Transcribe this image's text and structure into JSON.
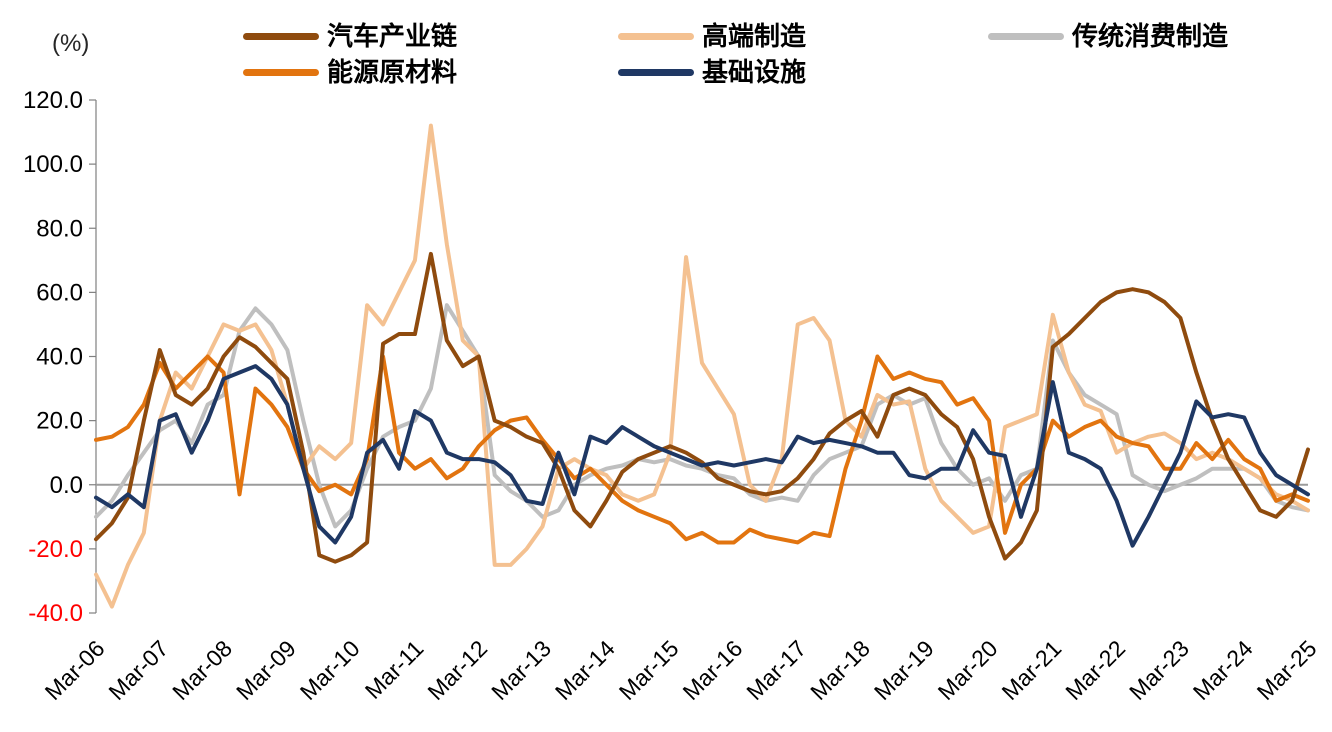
{
  "chart_data": {
    "type": "line",
    "title": "",
    "unit_label": "(%)",
    "x": [
      "Mar-06",
      "Jun-06",
      "Sep-06",
      "Dec-06",
      "Mar-07",
      "Jun-07",
      "Sep-07",
      "Dec-07",
      "Mar-08",
      "Jun-08",
      "Sep-08",
      "Dec-08",
      "Mar-09",
      "Jun-09",
      "Sep-09",
      "Dec-09",
      "Mar-10",
      "Jun-10",
      "Sep-10",
      "Dec-10",
      "Mar-11",
      "Jun-11",
      "Sep-11",
      "Dec-11",
      "Mar-12",
      "Jun-12",
      "Sep-12",
      "Dec-12",
      "Mar-13",
      "Jun-13",
      "Sep-13",
      "Dec-13",
      "Mar-14",
      "Jun-14",
      "Sep-14",
      "Dec-14",
      "Mar-15",
      "Jun-15",
      "Sep-15",
      "Dec-15",
      "Mar-16",
      "Jun-16",
      "Sep-16",
      "Dec-16",
      "Mar-17",
      "Jun-17",
      "Sep-17",
      "Dec-17",
      "Mar-18",
      "Jun-18",
      "Sep-18",
      "Dec-18",
      "Mar-19",
      "Jun-19",
      "Sep-19",
      "Dec-19",
      "Mar-20",
      "Jun-20",
      "Sep-20",
      "Dec-20",
      "Mar-21",
      "Jun-21",
      "Sep-21",
      "Dec-21",
      "Mar-22",
      "Jun-22",
      "Sep-22",
      "Dec-22",
      "Mar-23",
      "Jun-23",
      "Sep-23",
      "Dec-23",
      "Mar-24",
      "Jun-24",
      "Sep-24",
      "Dec-24",
      "Mar-25"
    ],
    "x_tick_every": 4,
    "ylim": [
      -40,
      120
    ],
    "y_ticks": [
      120,
      100,
      80,
      60,
      40,
      20,
      0,
      -20,
      -40
    ],
    "y_tick_labels": [
      "120.0",
      "100.0",
      "80.0",
      "60.0",
      "40.0",
      "20.0",
      "0.0",
      "-20.0",
      "-40.0"
    ],
    "negative_tick_color": "#FF0000",
    "tick_color": "#000000",
    "zero_line_color": "#9B9B9B",
    "axis_color": "#808080",
    "grid": false,
    "legend_position": "top",
    "series": [
      {
        "name": "汽车产业链",
        "color": "#8F4B0E",
        "values": [
          -17,
          -12,
          -4,
          20,
          42,
          28,
          25,
          30,
          40,
          46,
          43,
          38,
          33,
          10,
          -22,
          -24,
          -22,
          -18,
          44,
          47,
          47,
          72,
          45,
          37,
          40,
          20,
          18,
          15,
          13,
          5,
          -8,
          -13,
          -5,
          4,
          8,
          10,
          12,
          10,
          7,
          2,
          0,
          -2,
          -3,
          -2,
          2,
          8,
          16,
          20,
          23,
          15,
          28,
          30,
          28,
          22,
          18,
          8,
          -10,
          -23,
          -18,
          -8,
          43,
          47,
          52,
          57,
          60,
          61,
          60,
          57,
          52,
          35,
          20,
          8,
          0,
          -8,
          -10,
          -5,
          11
        ]
      },
      {
        "name": "高端制造",
        "color": "#F4C191",
        "values": [
          -28,
          -38,
          -25,
          -15,
          20,
          35,
          30,
          40,
          50,
          48,
          50,
          42,
          25,
          5,
          12,
          8,
          13,
          56,
          50,
          60,
          70,
          112,
          75,
          45,
          40,
          -25,
          -25,
          -20,
          -13,
          5,
          8,
          5,
          3,
          -3,
          -5,
          -3,
          10,
          71,
          38,
          30,
          22,
          0,
          -5,
          8,
          50,
          52,
          45,
          20,
          15,
          28,
          25,
          26,
          5,
          -5,
          -10,
          -15,
          -13,
          18,
          20,
          22,
          53,
          35,
          25,
          23,
          10,
          13,
          15,
          16,
          13,
          8,
          10,
          8,
          5,
          2,
          -3,
          -5,
          -8
        ]
      },
      {
        "name": "传统消费制造",
        "color": "#BFBFBF",
        "values": [
          -10,
          -5,
          3,
          10,
          17,
          20,
          13,
          25,
          28,
          48,
          55,
          50,
          42,
          20,
          0,
          -13,
          -8,
          5,
          15,
          18,
          20,
          30,
          56,
          48,
          40,
          3,
          -2,
          -5,
          -10,
          -8,
          0,
          3,
          5,
          6,
          8,
          7,
          8,
          6,
          5,
          3,
          2,
          -3,
          -5,
          -4,
          -5,
          3,
          8,
          10,
          12,
          25,
          28,
          25,
          27,
          13,
          5,
          0,
          2,
          -5,
          3,
          5,
          45,
          35,
          28,
          25,
          22,
          3,
          0,
          -2,
          0,
          2,
          5,
          5,
          5,
          2,
          -5,
          -7,
          -8
        ]
      },
      {
        "name": "能源原材料",
        "color": "#E2740F",
        "values": [
          14,
          15,
          18,
          25,
          38,
          30,
          35,
          40,
          35,
          -3,
          30,
          25,
          18,
          5,
          -2,
          0,
          -3,
          8,
          40,
          10,
          5,
          8,
          2,
          5,
          12,
          17,
          20,
          21,
          14,
          8,
          2,
          5,
          0,
          -5,
          -8,
          -10,
          -12,
          -17,
          -15,
          -18,
          -18,
          -14,
          -16,
          -17,
          -18,
          -15,
          -16,
          5,
          20,
          40,
          33,
          35,
          33,
          32,
          25,
          27,
          20,
          -15,
          0,
          5,
          20,
          15,
          18,
          20,
          15,
          13,
          12,
          5,
          5,
          13,
          8,
          14,
          8,
          5,
          -5,
          -3,
          -5
        ]
      },
      {
        "name": "基础设施",
        "color": "#1F3864",
        "values": [
          -4,
          -7,
          -3,
          -7,
          20,
          22,
          10,
          20,
          33,
          35,
          37,
          33,
          25,
          5,
          -13,
          -18,
          -10,
          10,
          14,
          5,
          23,
          20,
          10,
          8,
          8,
          7,
          3,
          -5,
          -6,
          10,
          -3,
          15,
          13,
          18,
          15,
          12,
          10,
          8,
          6,
          7,
          6,
          7,
          8,
          7,
          15,
          13,
          14,
          13,
          12,
          10,
          10,
          3,
          2,
          5,
          5,
          17,
          10,
          9,
          -10,
          5,
          32,
          10,
          8,
          5,
          -5,
          -19,
          -10,
          0,
          10,
          26,
          21,
          22,
          21,
          10,
          3,
          0,
          -3
        ]
      }
    ],
    "draw_order": [
      2,
      1,
      3,
      0,
      4
    ],
    "legend_rows": [
      [
        0,
        1,
        2
      ],
      [
        3,
        4
      ]
    ],
    "legend_cols": [
      243,
      618,
      988
    ],
    "legend_row_tops": [
      20,
      56
    ]
  }
}
